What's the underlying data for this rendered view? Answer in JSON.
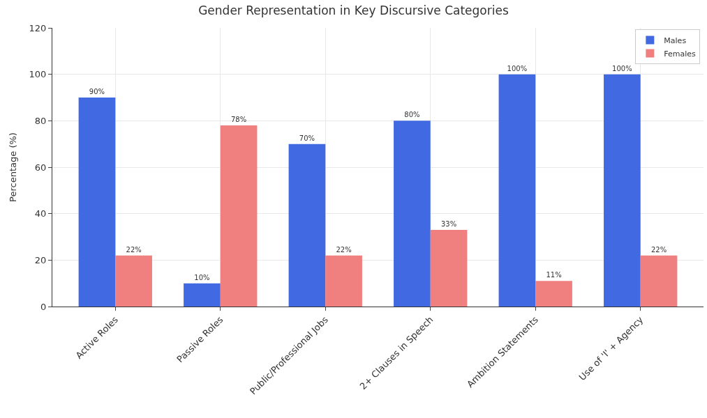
{
  "chart_data": {
    "type": "bar",
    "title": "Gender Representation in Key Discursive Categories",
    "ylabel": "Percentage (%)",
    "categories": [
      "Active Roles",
      "Passive Roles",
      "Public/Professional Jobs",
      "2+ Clauses in Speech",
      "Ambition Statements",
      "Use of 'I' + Agency"
    ],
    "series": [
      {
        "name": "Males",
        "color": "#4169e1",
        "values": [
          90,
          10,
          70,
          80,
          100,
          100
        ],
        "value_labels": [
          "90%",
          "10%",
          "70%",
          "80%",
          "100%",
          "100%"
        ]
      },
      {
        "name": "Females",
        "color": "#f08080",
        "values": [
          22,
          78,
          22,
          33,
          11,
          22
        ],
        "value_labels": [
          "22%",
          "78%",
          "22%",
          "33%",
          "11%",
          "22%"
        ]
      }
    ],
    "ylim": [
      0,
      120
    ],
    "yticks": [
      0,
      20,
      40,
      60,
      80,
      100,
      120
    ],
    "grid": true,
    "legend": "top right"
  }
}
